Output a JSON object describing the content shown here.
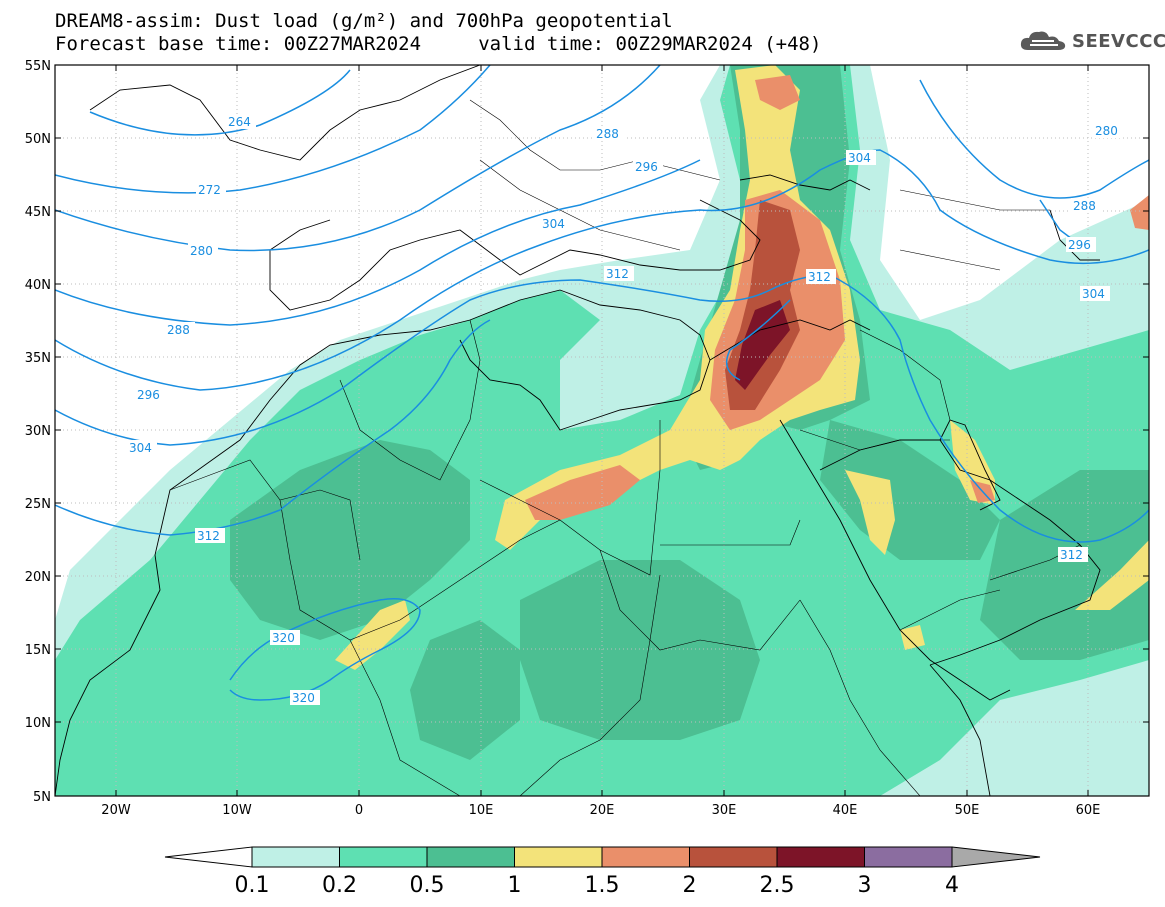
{
  "title_line1": "DREAM8-assim: Dust load (g/m²) and 700hPa geopotential",
  "title_line2": "Forecast base time: 00Z27MAR2024     valid time: 00Z29MAR2024 (+48)",
  "logo_text": "SEEVCCC",
  "map": {
    "lon_range": [
      -25,
      65
    ],
    "lat_range": [
      5,
      55
    ],
    "lat_labels": [
      "55N",
      "50N",
      "45N",
      "40N",
      "35N",
      "30N",
      "25N",
      "20N",
      "15N",
      "10N",
      "5N"
    ],
    "lon_labels": [
      "20W",
      "10W",
      "0",
      "10E",
      "20E",
      "30E",
      "40E",
      "50E",
      "60E"
    ],
    "gridlines": true
  },
  "contour_labels": [
    "264",
    "272",
    "280",
    "288",
    "296",
    "304",
    "312",
    "320",
    "320",
    "288",
    "296",
    "304",
    "312",
    "304",
    "280",
    "288",
    "296",
    "304",
    "312",
    "312"
  ],
  "colorbar": {
    "ticks": [
      "0.1",
      "0.2",
      "0.5",
      "1",
      "1.5",
      "2",
      "2.5",
      "3",
      "4"
    ],
    "colors": [
      "#bff0e6",
      "#5ee0b2",
      "#4cbf92",
      "#f3e37a",
      "#ea8f6a",
      "#b8523c",
      "#7d1428",
      "#8b6da0"
    ],
    "under_color": "#ffffff",
    "over_color": "#a9a9a9"
  },
  "colors": {
    "contour": "#1a8ee0",
    "border": "#000000"
  }
}
